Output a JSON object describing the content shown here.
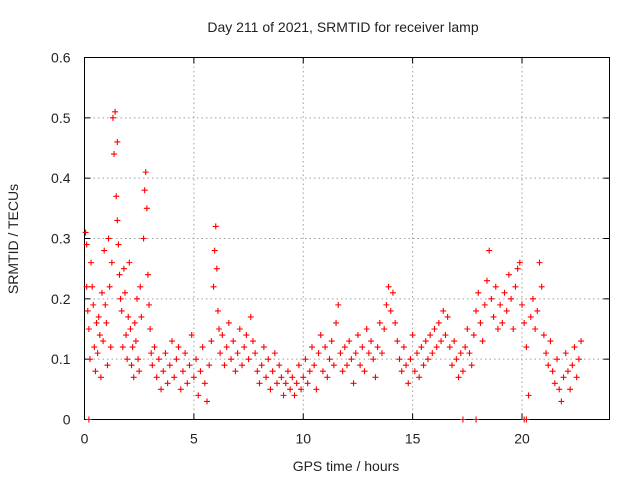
{
  "chart_data": {
    "type": "scatter",
    "title": "Day 211 of 2021, SRMTID for receiver lamp",
    "xlabel": "GPS time / hours",
    "ylabel": "SRMTID / TECUs",
    "xlim": [
      0,
      24
    ],
    "ylim": [
      0,
      0.6
    ],
    "xticks": [
      0,
      5,
      10,
      15,
      20
    ],
    "xtick_labels": [
      "0",
      "5",
      "10",
      "15",
      "20"
    ],
    "yticks": [
      0,
      0.1,
      0.2,
      0.3,
      0.4,
      0.5,
      0.6
    ],
    "ytick_labels": [
      "0",
      "0.1",
      "0.2",
      "0.3",
      "0.4",
      "0.5",
      "0.6"
    ],
    "grid": true,
    "marker": "+",
    "color": "#ff0000",
    "series": [
      {
        "name": "SRMTID",
        "points": [
          [
            0.05,
            0.31
          ],
          [
            0.1,
            0.29
          ],
          [
            0.1,
            0.22
          ],
          [
            0.15,
            0.18
          ],
          [
            0.2,
            0.15
          ],
          [
            0.25,
            0.1
          ],
          [
            0.3,
            0.26
          ],
          [
            0.35,
            0.22
          ],
          [
            0.4,
            0.19
          ],
          [
            0.45,
            0.12
          ],
          [
            0.5,
            0.08
          ],
          [
            0.55,
            0.16
          ],
          [
            0.6,
            0.11
          ],
          [
            0.65,
            0.17
          ],
          [
            0.7,
            0.14
          ],
          [
            0.75,
            0.07
          ],
          [
            0.8,
            0.21
          ],
          [
            0.85,
            0.13
          ],
          [
            0.9,
            0.28
          ],
          [
            0.95,
            0.19
          ],
          [
            1.0,
            0.16
          ],
          [
            1.05,
            0.09
          ],
          [
            1.1,
            0.3
          ],
          [
            1.15,
            0.22
          ],
          [
            1.2,
            0.12
          ],
          [
            1.25,
            0.26
          ],
          [
            1.3,
            0.5
          ],
          [
            1.35,
            0.44
          ],
          [
            1.4,
            0.51
          ],
          [
            1.45,
            0.37
          ],
          [
            1.5,
            0.33
          ],
          [
            1.5,
            0.46
          ],
          [
            1.55,
            0.29
          ],
          [
            1.6,
            0.24
          ],
          [
            1.65,
            0.2
          ],
          [
            1.7,
            0.18
          ],
          [
            1.75,
            0.12
          ],
          [
            1.8,
            0.25
          ],
          [
            1.85,
            0.21
          ],
          [
            1.9,
            0.14
          ],
          [
            1.95,
            0.1
          ],
          [
            2.0,
            0.17
          ],
          [
            2.05,
            0.26
          ],
          [
            2.1,
            0.15
          ],
          [
            2.15,
            0.09
          ],
          [
            2.2,
            0.12
          ],
          [
            2.25,
            0.07
          ],
          [
            2.3,
            0.16
          ],
          [
            2.35,
            0.13
          ],
          [
            2.4,
            0.2
          ],
          [
            2.45,
            0.1
          ],
          [
            2.5,
            0.08
          ],
          [
            2.55,
            0.22
          ],
          [
            2.6,
            0.17
          ],
          [
            2.7,
            0.3
          ],
          [
            2.75,
            0.38
          ],
          [
            2.8,
            0.41
          ],
          [
            2.85,
            0.35
          ],
          [
            2.9,
            0.24
          ],
          [
            2.95,
            0.19
          ],
          [
            3.0,
            0.15
          ],
          [
            3.05,
            0.11
          ],
          [
            3.1,
            0.09
          ],
          [
            3.2,
            0.12
          ],
          [
            3.3,
            0.07
          ],
          [
            3.4,
            0.1
          ],
          [
            3.5,
            0.05
          ],
          [
            3.6,
            0.08
          ],
          [
            3.7,
            0.11
          ],
          [
            3.8,
            0.06
          ],
          [
            3.9,
            0.09
          ],
          [
            4.0,
            0.13
          ],
          [
            4.1,
            0.07
          ],
          [
            4.2,
            0.1
          ],
          [
            4.3,
            0.12
          ],
          [
            4.4,
            0.05
          ],
          [
            4.5,
            0.08
          ],
          [
            4.6,
            0.11
          ],
          [
            4.7,
            0.06
          ],
          [
            4.8,
            0.09
          ],
          [
            4.9,
            0.14
          ],
          [
            5.0,
            0.07
          ],
          [
            5.1,
            0.1
          ],
          [
            5.2,
            0.04
          ],
          [
            5.3,
            0.08
          ],
          [
            5.4,
            0.12
          ],
          [
            5.5,
            0.06
          ],
          [
            5.6,
            0.03
          ],
          [
            5.7,
            0.09
          ],
          [
            5.8,
            0.13
          ],
          [
            5.9,
            0.22
          ],
          [
            5.95,
            0.28
          ],
          [
            6.0,
            0.32
          ],
          [
            6.05,
            0.25
          ],
          [
            6.1,
            0.18
          ],
          [
            6.15,
            0.15
          ],
          [
            6.2,
            0.11
          ],
          [
            6.3,
            0.14
          ],
          [
            6.4,
            0.09
          ],
          [
            6.5,
            0.12
          ],
          [
            6.6,
            0.16
          ],
          [
            6.7,
            0.1
          ],
          [
            6.8,
            0.13
          ],
          [
            6.9,
            0.08
          ],
          [
            7.0,
            0.11
          ],
          [
            7.1,
            0.15
          ],
          [
            7.2,
            0.09
          ],
          [
            7.3,
            0.12
          ],
          [
            7.4,
            0.14
          ],
          [
            7.5,
            0.1
          ],
          [
            7.6,
            0.17
          ],
          [
            7.7,
            0.13
          ],
          [
            7.8,
            0.11
          ],
          [
            7.9,
            0.08
          ],
          [
            8.0,
            0.06
          ],
          [
            8.1,
            0.09
          ],
          [
            8.2,
            0.12
          ],
          [
            8.3,
            0.07
          ],
          [
            8.4,
            0.1
          ],
          [
            8.5,
            0.05
          ],
          [
            8.6,
            0.08
          ],
          [
            8.7,
            0.11
          ],
          [
            8.8,
            0.06
          ],
          [
            8.9,
            0.09
          ],
          [
            9.0,
            0.07
          ],
          [
            9.1,
            0.04
          ],
          [
            9.2,
            0.06
          ],
          [
            9.3,
            0.08
          ],
          [
            9.4,
            0.05
          ],
          [
            9.5,
            0.07
          ],
          [
            9.6,
            0.04
          ],
          [
            9.7,
            0.06
          ],
          [
            9.8,
            0.09
          ],
          [
            9.9,
            0.05
          ],
          [
            10.0,
            0.07
          ],
          [
            10.1,
            0.1
          ],
          [
            10.2,
            0.06
          ],
          [
            10.3,
            0.08
          ],
          [
            10.4,
            0.12
          ],
          [
            10.5,
            0.09
          ],
          [
            10.6,
            0.05
          ],
          [
            10.7,
            0.11
          ],
          [
            10.8,
            0.14
          ],
          [
            10.9,
            0.08
          ],
          [
            11.0,
            0.12
          ],
          [
            11.1,
            0.07
          ],
          [
            11.2,
            0.1
          ],
          [
            11.3,
            0.13
          ],
          [
            11.4,
            0.09
          ],
          [
            11.5,
            0.16
          ],
          [
            11.6,
            0.19
          ],
          [
            11.7,
            0.11
          ],
          [
            11.8,
            0.08
          ],
          [
            11.9,
            0.12
          ],
          [
            12.0,
            0.09
          ],
          [
            12.1,
            0.13
          ],
          [
            12.2,
            0.1
          ],
          [
            12.3,
            0.06
          ],
          [
            12.4,
            0.11
          ],
          [
            12.5,
            0.14
          ],
          [
            12.6,
            0.09
          ],
          [
            12.7,
            0.12
          ],
          [
            12.8,
            0.08
          ],
          [
            12.9,
            0.15
          ],
          [
            13.0,
            0.11
          ],
          [
            13.1,
            0.13
          ],
          [
            13.2,
            0.1
          ],
          [
            13.3,
            0.07
          ],
          [
            13.4,
            0.12
          ],
          [
            13.5,
            0.16
          ],
          [
            13.6,
            0.11
          ],
          [
            13.7,
            0.15
          ],
          [
            13.8,
            0.19
          ],
          [
            13.9,
            0.22
          ],
          [
            14.0,
            0.18
          ],
          [
            14.1,
            0.21
          ],
          [
            14.2,
            0.16
          ],
          [
            14.3,
            0.13
          ],
          [
            14.4,
            0.1
          ],
          [
            14.5,
            0.08
          ],
          [
            14.6,
            0.12
          ],
          [
            14.7,
            0.09
          ],
          [
            14.8,
            0.06
          ],
          [
            14.9,
            0.1
          ],
          [
            15.0,
            0.14
          ],
          [
            15.1,
            0.08
          ],
          [
            15.2,
            0.11
          ],
          [
            15.3,
            0.07
          ],
          [
            15.4,
            0.12
          ],
          [
            15.5,
            0.09
          ],
          [
            15.6,
            0.13
          ],
          [
            15.7,
            0.1
          ],
          [
            15.8,
            0.14
          ],
          [
            15.9,
            0.11
          ],
          [
            16.0,
            0.15
          ],
          [
            16.1,
            0.12
          ],
          [
            16.2,
            0.16
          ],
          [
            16.3,
            0.13
          ],
          [
            16.4,
            0.18
          ],
          [
            16.5,
            0.14
          ],
          [
            16.6,
            0.17
          ],
          [
            16.7,
            0.12
          ],
          [
            16.8,
            0.09
          ],
          [
            16.9,
            0.13
          ],
          [
            17.0,
            0.1
          ],
          [
            17.1,
            0.07
          ],
          [
            17.2,
            0.11
          ],
          [
            17.3,
            0.08
          ],
          [
            17.4,
            0.12
          ],
          [
            17.5,
            0.15
          ],
          [
            17.6,
            0.11
          ],
          [
            17.7,
            0.09
          ],
          [
            17.8,
            0.14
          ],
          [
            17.9,
            0.18
          ],
          [
            18.0,
            0.21
          ],
          [
            18.1,
            0.16
          ],
          [
            18.2,
            0.13
          ],
          [
            18.3,
            0.19
          ],
          [
            18.4,
            0.23
          ],
          [
            18.5,
            0.28
          ],
          [
            18.6,
            0.2
          ],
          [
            18.7,
            0.17
          ],
          [
            18.8,
            0.22
          ],
          [
            18.9,
            0.15
          ],
          [
            19.0,
            0.19
          ],
          [
            19.1,
            0.16
          ],
          [
            19.2,
            0.21
          ],
          [
            19.3,
            0.18
          ],
          [
            19.4,
            0.24
          ],
          [
            19.5,
            0.2
          ],
          [
            19.6,
            0.15
          ],
          [
            19.7,
            0.22
          ],
          [
            19.8,
            0.25
          ],
          [
            19.9,
            0.26
          ],
          [
            20.0,
            0.19
          ],
          [
            20.1,
            0.16
          ],
          [
            20.2,
            0.12
          ],
          [
            20.3,
            0.04
          ],
          [
            20.4,
            0.17
          ],
          [
            20.5,
            0.2
          ],
          [
            20.6,
            0.15
          ],
          [
            20.7,
            0.18
          ],
          [
            20.8,
            0.26
          ],
          [
            20.9,
            0.22
          ],
          [
            21.0,
            0.14
          ],
          [
            21.1,
            0.11
          ],
          [
            21.2,
            0.09
          ],
          [
            21.3,
            0.13
          ],
          [
            21.4,
            0.08
          ],
          [
            21.5,
            0.06
          ],
          [
            21.6,
            0.1
          ],
          [
            21.7,
            0.05
          ],
          [
            21.8,
            0.03
          ],
          [
            21.9,
            0.07
          ],
          [
            22.0,
            0.11
          ],
          [
            22.1,
            0.08
          ],
          [
            22.2,
            0.05
          ],
          [
            22.3,
            0.09
          ],
          [
            22.4,
            0.12
          ],
          [
            22.5,
            0.07
          ],
          [
            22.6,
            0.1
          ],
          [
            22.7,
            0.13
          ],
          [
            0.2,
            0.0
          ],
          [
            17.3,
            0.0
          ],
          [
            17.9,
            0.0
          ],
          [
            20.1,
            0.0
          ],
          [
            20.2,
            0.0
          ]
        ]
      }
    ]
  }
}
